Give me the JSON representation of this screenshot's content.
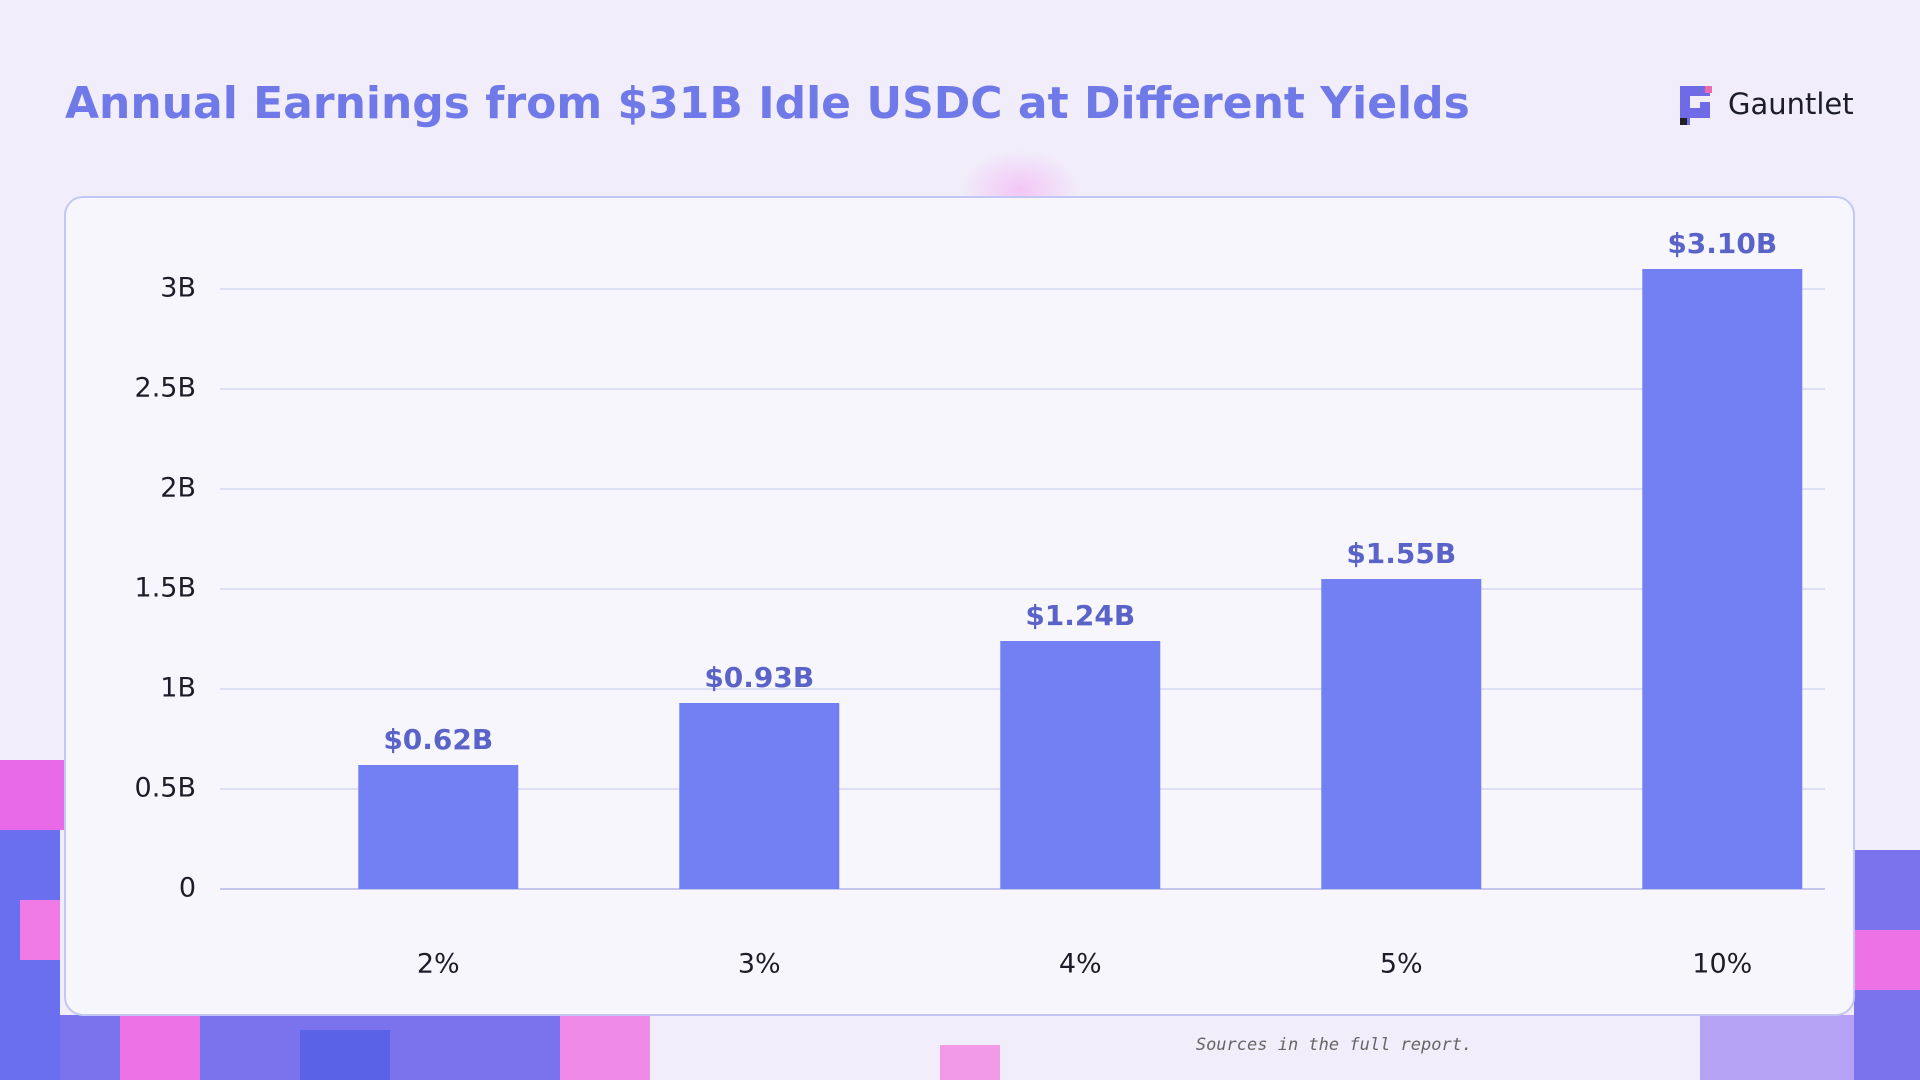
{
  "brand": "Gauntlet",
  "footnote": "Sources in the full report.",
  "chart_data": {
    "type": "bar",
    "title": "Annual Earnings from $31B Idle USDC at Different Yields",
    "categories": [
      "2%",
      "3%",
      "4%",
      "5%",
      "10%"
    ],
    "values": [
      0.62,
      0.93,
      1.24,
      1.55,
      3.1
    ],
    "value_labels": [
      "$0.62B",
      "$0.93B",
      "$1.24B",
      "$1.55B",
      "$3.10B"
    ],
    "color": "#7380f3",
    "ylim": [
      0,
      3.3
    ],
    "yticks": [
      0,
      {
        "value": 0.5,
        "label": "0.5B"
      },
      {
        "value": 1,
        "label": "1B"
      },
      {
        "value": 1.5,
        "label": "1.5B"
      },
      {
        "value": 2,
        "label": "2B"
      },
      {
        "value": 2.5,
        "label": "2.5B"
      },
      {
        "value": 3,
        "label": "3B"
      }
    ],
    "grid": true
  }
}
